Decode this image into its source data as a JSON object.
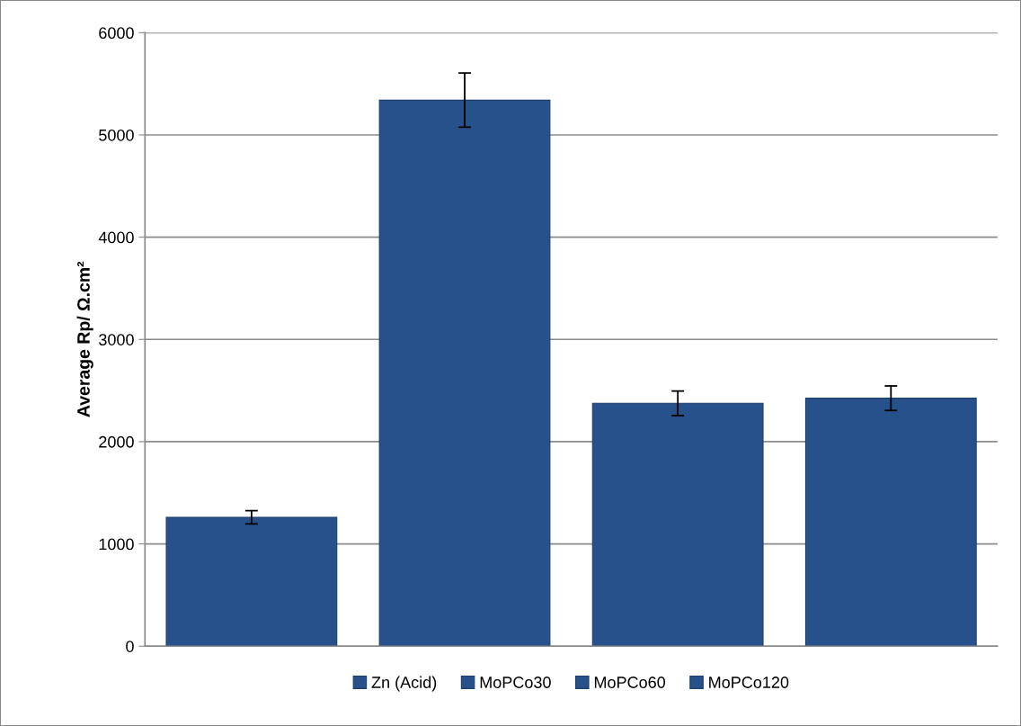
{
  "chart_data": {
    "type": "bar",
    "ylabel": "Average Rp/ Ω.cm²",
    "categories": [
      null,
      null,
      null,
      null
    ],
    "series": [
      {
        "name": "Zn (Acid)",
        "color": "#27518a",
        "values": [
          1260,
          null,
          null,
          null
        ],
        "errors": [
          65,
          null,
          null,
          null
        ]
      },
      {
        "name": "MoPCo30",
        "color": "#27518a",
        "values": [
          null,
          5340,
          null,
          null
        ],
        "errors": [
          null,
          265,
          null,
          null
        ]
      },
      {
        "name": "MoPCo60",
        "color": "#27518a",
        "values": [
          null,
          null,
          2375,
          null
        ],
        "errors": [
          null,
          null,
          120,
          null
        ]
      },
      {
        "name": "MoPCo120",
        "color": "#27518a",
        "values": [
          null,
          null,
          null,
          2425
        ],
        "errors": [
          null,
          null,
          null,
          120
        ]
      }
    ],
    "ylim": [
      0,
      6000
    ],
    "yticks": [
      0,
      1000,
      2000,
      3000,
      4000,
      5000,
      6000
    ],
    "grid": "y",
    "legend": "bottom"
  }
}
